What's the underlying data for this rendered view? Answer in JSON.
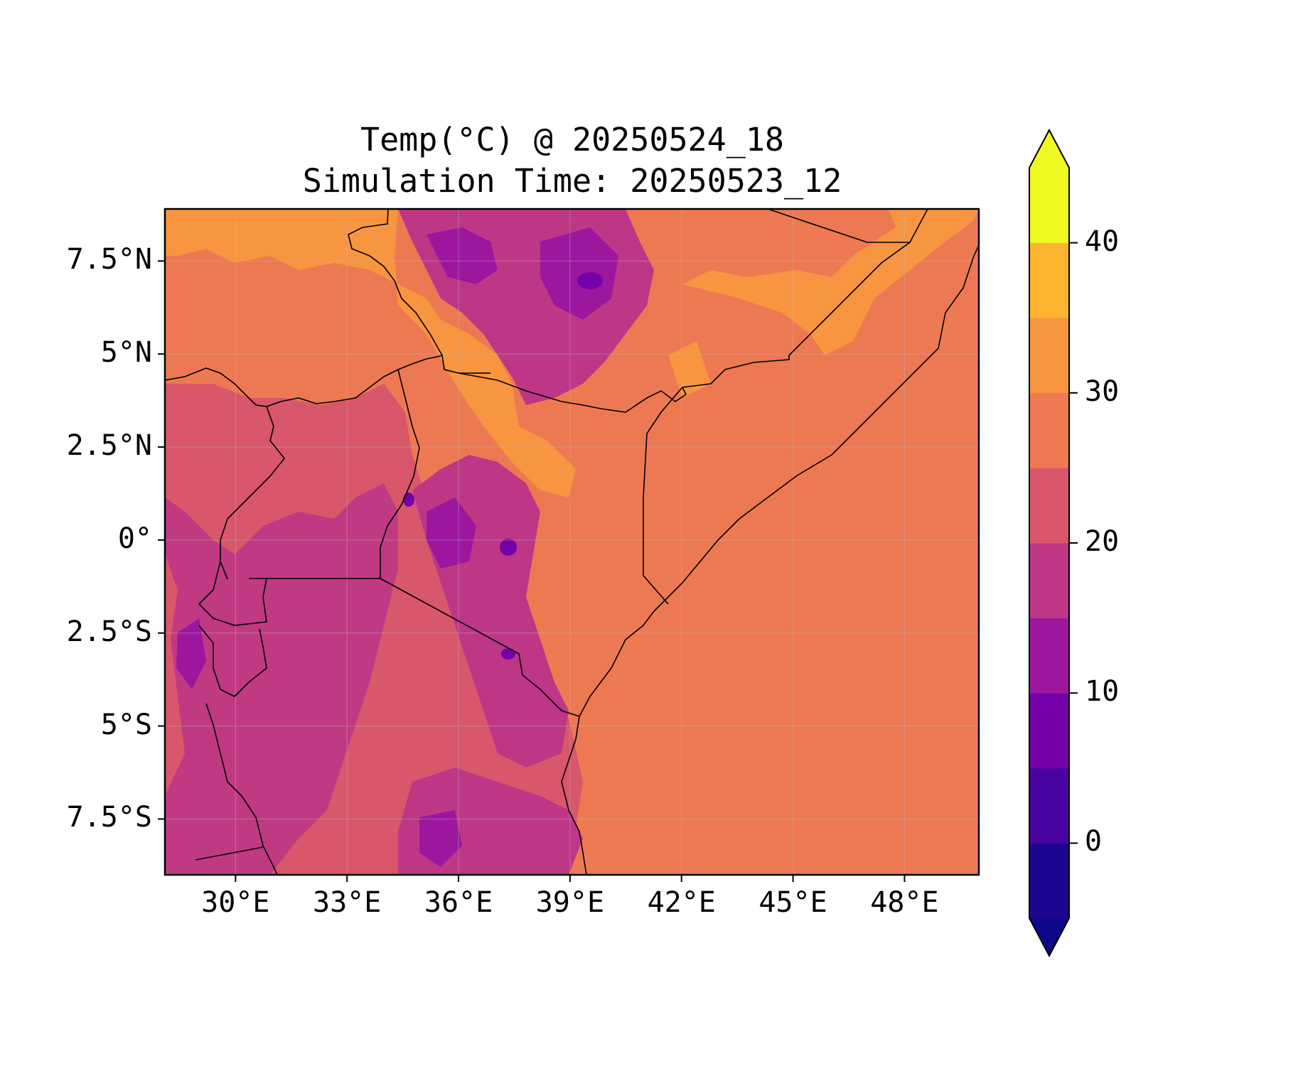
{
  "title": {
    "line1": "Temp(°C) @ 20250524_18",
    "line2": "Simulation Time: 20250523_12"
  },
  "chart_data": {
    "type": "heatmap",
    "title": "Temp(°C) @ 20250524_18",
    "subtitle": "Simulation Time: 20250523_12",
    "xlabel": "",
    "ylabel": "",
    "x_ticks": [
      "30°E",
      "33°E",
      "36°E",
      "39°E",
      "42°E",
      "45°E",
      "48°E"
    ],
    "x_tick_values": [
      30,
      33,
      36,
      39,
      42,
      45,
      48
    ],
    "y_ticks": [
      "7.5°N",
      "5°N",
      "2.5°N",
      "0°",
      "2.5°S",
      "5°S",
      "7.5°S"
    ],
    "y_tick_values": [
      7.5,
      5,
      2.5,
      0,
      -2.5,
      -5,
      -7.5
    ],
    "xlim": [
      28.1,
      50.0
    ],
    "ylim": [
      -9.0,
      8.9
    ],
    "grid": true,
    "colorbar": {
      "ticks": [
        "0",
        "10",
        "20",
        "30",
        "40"
      ],
      "tick_values": [
        0,
        10,
        20,
        30,
        40
      ],
      "range": [
        -5,
        45
      ],
      "extend": "both",
      "levels": [
        -5,
        0,
        5,
        10,
        15,
        20,
        25,
        30,
        35,
        40,
        45
      ],
      "colors": [
        "#1d068f",
        "#4903a0",
        "#7401a8",
        "#9c179e",
        "#bd3786",
        "#d8576b",
        "#ed7953",
        "#f89540",
        "#fdb42f",
        "#f0f921"
      ],
      "under_color": "#0d0887",
      "over_color": "#f0f921"
    },
    "regions": [
      {
        "name": "background_mid",
        "level": "25-30",
        "color": "#ed7953"
      },
      {
        "name": "north_lowland",
        "level": "30-35",
        "color": "#f89540"
      },
      {
        "name": "highlands",
        "level": "15-20",
        "color": "#bd3786"
      },
      {
        "name": "cool_peaks",
        "level": "5-10",
        "color": "#7401a8"
      },
      {
        "name": "lake_region",
        "level": "20-25",
        "color": "#d8576b"
      }
    ]
  }
}
